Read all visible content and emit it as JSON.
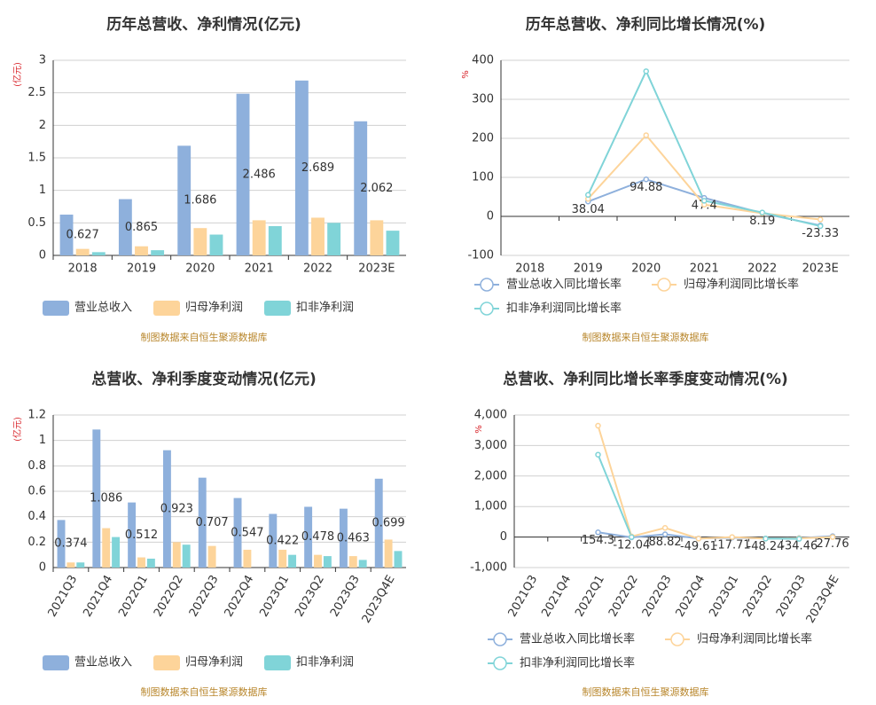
{
  "chart_data": [
    {
      "type": "bar",
      "title": "历年总营收、净利情况(亿元)",
      "unit": "(亿元)",
      "source": "制图数据来自恒生聚源数据库",
      "categories": [
        "2018",
        "2019",
        "2020",
        "2021",
        "2022",
        "2023E"
      ],
      "series": [
        {
          "name": "营业总收入",
          "color": "#8eb0dc",
          "labels": true,
          "values": [
            0.627,
            0.865,
            1.686,
            2.486,
            2.689,
            2.062
          ]
        },
        {
          "name": "归母净利润",
          "color": "#fdd49a",
          "values": [
            0.1,
            0.14,
            0.42,
            0.54,
            0.58,
            0.54
          ]
        },
        {
          "name": "扣非净利润",
          "color": "#80d4d8",
          "values": [
            0.05,
            0.08,
            0.32,
            0.45,
            0.5,
            0.38
          ]
        }
      ],
      "ylim": [
        0,
        3
      ],
      "yticks": [
        0,
        0.5,
        1,
        1.5,
        2,
        2.5,
        3
      ],
      "grid": true
    },
    {
      "type": "line",
      "title": "历年总营收、净利同比增长情况(%)",
      "unit": "%",
      "source": "制图数据来自恒生聚源数据库",
      "categories": [
        "2018",
        "2019",
        "2020",
        "2021",
        "2022",
        "2023E"
      ],
      "series": [
        {
          "name": "营业总收入同比增长率",
          "color": "#8eb0dc",
          "labels": true,
          "values": [
            null,
            38.04,
            94.88,
            47.4,
            8.19,
            -23.33
          ]
        },
        {
          "name": "归母净利润同比增长率",
          "color": "#fdd49a",
          "values": [
            null,
            45,
            208,
            30,
            8,
            -8
          ]
        },
        {
          "name": "扣非净利润同比增长率",
          "color": "#80d4d8",
          "values": [
            null,
            55,
            372,
            40,
            10,
            -25
          ]
        }
      ],
      "ylim": [
        -100,
        400
      ],
      "yticks": [
        -100,
        0,
        100,
        200,
        300,
        400
      ],
      "grid": true
    },
    {
      "type": "bar",
      "title": "总营收、净利季度变动情况(亿元)",
      "unit": "(亿元)",
      "source": "制图数据来自恒生聚源数据库",
      "categories": [
        "2021Q3",
        "2021Q4",
        "2022Q1",
        "2022Q2",
        "2022Q3",
        "2022Q4",
        "2023Q1",
        "2023Q2",
        "2023Q3",
        "2023Q4E"
      ],
      "series": [
        {
          "name": "营业总收入",
          "color": "#8eb0dc",
          "labels": true,
          "values": [
            0.374,
            1.086,
            0.512,
            0.923,
            0.707,
            0.547,
            0.422,
            0.478,
            0.463,
            0.699
          ]
        },
        {
          "name": "归母净利润",
          "color": "#fdd49a",
          "values": [
            0.04,
            0.31,
            0.08,
            0.2,
            0.17,
            0.14,
            0.14,
            0.1,
            0.09,
            0.22
          ]
        },
        {
          "name": "扣非净利润",
          "color": "#80d4d8",
          "values": [
            0.04,
            0.24,
            0.07,
            0.18,
            null,
            null,
            0.1,
            0.09,
            0.06,
            0.13
          ]
        }
      ],
      "ylim": [
        0,
        1.2
      ],
      "yticks": [
        0,
        0.2,
        0.4,
        0.6,
        0.8,
        1,
        1.2
      ],
      "grid": true
    },
    {
      "type": "line",
      "title": "总营收、净利同比增长率季度变动情况(%)",
      "unit": "%",
      "source": "制图数据来自恒生聚源数据库",
      "categories": [
        "2021Q3",
        "2021Q4",
        "2022Q1",
        "2022Q2",
        "2022Q3",
        "2022Q4",
        "2023Q1",
        "2023Q2",
        "2023Q3",
        "2023Q4E"
      ],
      "series": [
        {
          "name": "营业总收入同比增长率",
          "color": "#8eb0dc",
          "labels": true,
          "values": [
            null,
            null,
            154.3,
            -12.04,
            88.82,
            -49.61,
            -17.71,
            -48.24,
            -34.46,
            27.76
          ]
        },
        {
          "name": "归母净利润同比增长率",
          "color": "#fdd49a",
          "values": [
            null,
            null,
            3650,
            20,
            300,
            -50,
            0,
            -50,
            -40,
            0
          ]
        },
        {
          "name": "扣非净利润同比增长率",
          "color": "#80d4d8",
          "values": [
            null,
            null,
            2700,
            0,
            null,
            null,
            null,
            -50,
            -60,
            null
          ]
        }
      ],
      "ylim": [
        -1000,
        4000
      ],
      "yticks": [
        {
          "value": -1000,
          "label": "-1,000"
        },
        0,
        {
          "value": 1000,
          "label": "1,000"
        },
        {
          "value": 2000,
          "label": "2,000"
        },
        {
          "value": 3000,
          "label": "3,000"
        },
        {
          "value": 4000,
          "label": "4,000"
        }
      ],
      "grid": true
    }
  ]
}
